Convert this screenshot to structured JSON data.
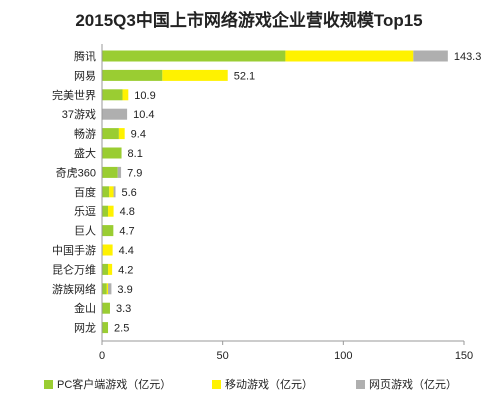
{
  "chart_data": {
    "type": "bar",
    "orientation": "horizontal",
    "stacked": true,
    "title": "2015Q3中国上市网络游戏企业营收规模Top15",
    "categories": [
      "腾讯",
      "网易",
      "完美世界",
      "37游戏",
      "畅游",
      "盛大",
      "奇虎360",
      "百度",
      "乐逗",
      "巨人",
      "中国手游",
      "昆仑万维",
      "游族网络",
      "金山",
      "网龙"
    ],
    "totals": [
      143.3,
      52.1,
      10.9,
      10.4,
      9.4,
      8.1,
      7.9,
      5.6,
      4.8,
      4.7,
      4.4,
      4.2,
      3.9,
      3.3,
      2.5
    ],
    "total_labels": [
      "143.3",
      "52.1",
      "10.9",
      "10.4",
      "9.4",
      "8.1",
      "7.9",
      "5.6",
      "4.8",
      "4.7",
      "4.4",
      "4.2",
      "3.9",
      "3.3",
      "2.5"
    ],
    "series": [
      {
        "name": "PC客户端游戏（亿元）",
        "color": "#9ACD32",
        "values": [
          76,
          25,
          8.5,
          0,
          7,
          8.1,
          6.5,
          3,
          2.5,
          4.7,
          0.3,
          2.5,
          2,
          3.3,
          2.5
        ]
      },
      {
        "name": "移动游戏（亿元）",
        "color": "#FFF200",
        "values": [
          53,
          27.1,
          2.4,
          0,
          2.4,
          0,
          0,
          1.8,
          2.3,
          0,
          4.1,
          1.7,
          0.5,
          0,
          0
        ]
      },
      {
        "name": "网页游戏（亿元）",
        "color": "#AFAFAF",
        "values": [
          14.3,
          0,
          0,
          10.4,
          0,
          0,
          1.4,
          0.8,
          0,
          0,
          0,
          0,
          1.4,
          0,
          0
        ]
      }
    ],
    "xlim": [
      0,
      150
    ],
    "xticks": [
      "0",
      "50",
      "100",
      "150"
    ],
    "legend_position": "bottom"
  }
}
